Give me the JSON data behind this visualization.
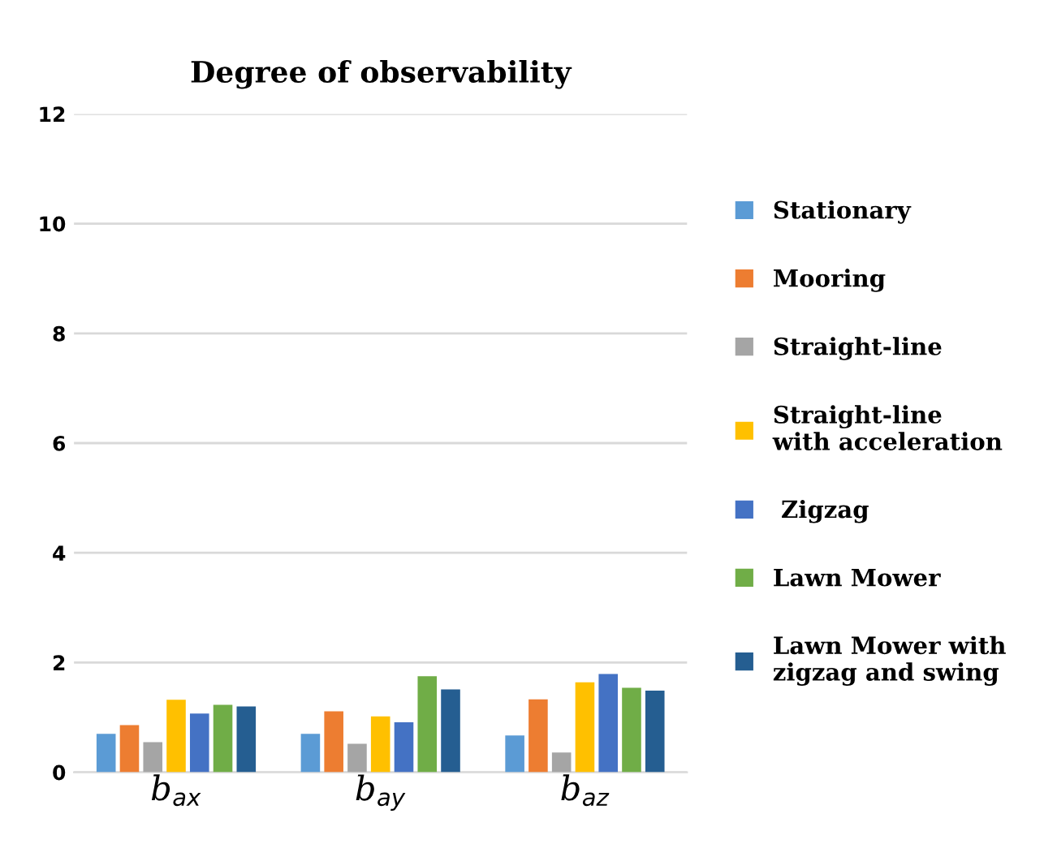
{
  "chart_data": {
    "type": "bar",
    "title": "Degree of observability",
    "categories": [
      "b$_{ax}$",
      "b$_{ay}$",
      "b$_{az}$"
    ],
    "series": [
      {
        "name": "Stationary",
        "color": "#5b9bd5",
        "values": [
          0.7,
          0.7,
          0.67
        ]
      },
      {
        "name": "Mooring",
        "color": "#ed7d31",
        "values": [
          0.86,
          1.11,
          1.33
        ]
      },
      {
        "name": "Straight-line",
        "color": "#a5a5a5",
        "values": [
          0.55,
          0.52,
          0.36
        ]
      },
      {
        "name": "Straight-line\nwith acceleration",
        "color": "#ffc000",
        "values": [
          1.32,
          1.02,
          1.64
        ]
      },
      {
        "name": " Zigzag",
        "color": "#4472c4",
        "values": [
          1.07,
          0.91,
          1.79
        ]
      },
      {
        "name": "Lawn Mower",
        "color": "#70ad47",
        "values": [
          1.23,
          1.75,
          1.54
        ]
      },
      {
        "name": "Lawn Mower with\nzigzag and swing",
        "color": "#255e91",
        "values": [
          1.2,
          1.51,
          1.49
        ]
      }
    ],
    "ylim": [
      0,
      12
    ],
    "yticks": [
      0,
      2,
      4,
      6,
      8,
      10,
      12
    ],
    "grid": "y",
    "legend": "right"
  }
}
